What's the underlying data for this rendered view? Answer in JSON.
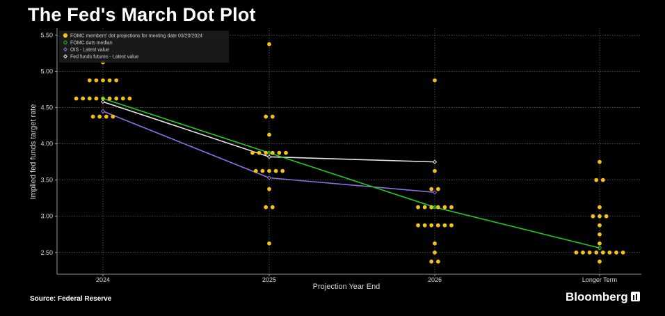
{
  "header": {
    "title": "The Fed's March Dot Plot"
  },
  "footer": {
    "source": "Source: Federal Reserve",
    "brand": "Bloomberg"
  },
  "colors": {
    "dots": "#f2c21b",
    "median": "#22cc22",
    "ois": "#8b6fe0",
    "futures": "#e6e6e6",
    "grid": "#6a6a6a"
  },
  "chart_data": {
    "type": "scatter",
    "title": "The Fed's March Dot Plot",
    "xlabel": "Projection Year End",
    "ylabel": "Implied fed funds target rate",
    "ylim": [
      2.2,
      5.6
    ],
    "yticks": [
      "5.50",
      "5.00",
      "4.50",
      "4.00",
      "3.50",
      "3.00",
      "2.50"
    ],
    "categories": [
      "2024",
      "2025",
      "2026",
      "Longer Term"
    ],
    "grid": true,
    "legend": [
      {
        "key": "dots",
        "label": "FOMC members' dot projections for meeting date 03/20/2024"
      },
      {
        "key": "median",
        "label": "FOMC dots median"
      },
      {
        "key": "ois",
        "label": "OIS - Latest value"
      },
      {
        "key": "futures",
        "label": "Fed funds futures - Latest value"
      }
    ],
    "dots": [
      {
        "category": "2024",
        "rates": [
          {
            "rate": 5.125,
            "count": 1
          },
          {
            "rate": 4.875,
            "count": 5
          },
          {
            "rate": 4.625,
            "count": 9
          },
          {
            "rate": 4.375,
            "count": 4
          }
        ]
      },
      {
        "category": "2025",
        "rates": [
          {
            "rate": 5.375,
            "count": 1
          },
          {
            "rate": 4.375,
            "count": 2
          },
          {
            "rate": 4.125,
            "count": 1
          },
          {
            "rate": 3.875,
            "count": 6
          },
          {
            "rate": 3.625,
            "count": 5
          },
          {
            "rate": 3.375,
            "count": 1
          },
          {
            "rate": 3.125,
            "count": 2
          },
          {
            "rate": 2.625,
            "count": 1
          }
        ]
      },
      {
        "category": "2026",
        "rates": [
          {
            "rate": 4.875,
            "count": 1
          },
          {
            "rate": 3.625,
            "count": 1
          },
          {
            "rate": 3.375,
            "count": 2
          },
          {
            "rate": 3.125,
            "count": 6
          },
          {
            "rate": 2.875,
            "count": 6
          },
          {
            "rate": 2.625,
            "count": 1
          },
          {
            "rate": 2.5,
            "count": 1
          },
          {
            "rate": 2.375,
            "count": 2
          }
        ]
      },
      {
        "category": "Longer Term",
        "rates": [
          {
            "rate": 3.75,
            "count": 1
          },
          {
            "rate": 3.5,
            "count": 2
          },
          {
            "rate": 3.125,
            "count": 1
          },
          {
            "rate": 3.0,
            "count": 3
          },
          {
            "rate": 2.875,
            "count": 1
          },
          {
            "rate": 2.75,
            "count": 1
          },
          {
            "rate": 2.625,
            "count": 1
          },
          {
            "rate": 2.5,
            "count": 8
          },
          {
            "rate": 2.375,
            "count": 1
          }
        ]
      }
    ],
    "series": [
      {
        "name": "FOMC dots median",
        "key": "median",
        "x": [
          "2024",
          "2025",
          "2026",
          "Longer Term"
        ],
        "values": [
          4.625,
          3.875,
          3.125,
          2.5625
        ]
      },
      {
        "name": "OIS - Latest value",
        "key": "ois",
        "x": [
          "2024",
          "2025",
          "2026"
        ],
        "values": [
          4.45,
          3.53,
          3.33
        ]
      },
      {
        "name": "Fed funds futures - Latest value",
        "key": "futures",
        "x": [
          "2024",
          "2025",
          "2026"
        ],
        "values": [
          4.58,
          3.82,
          3.75
        ]
      }
    ]
  }
}
